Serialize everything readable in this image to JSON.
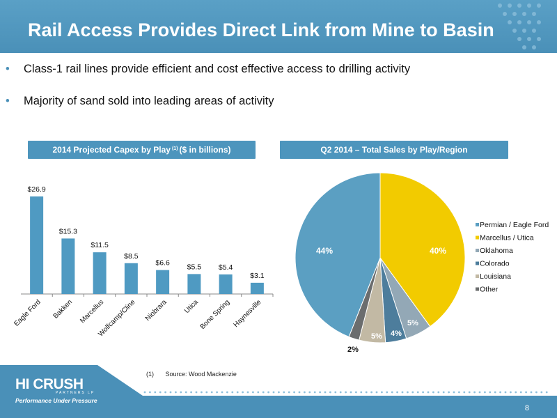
{
  "slide": {
    "title": "Rail Access Provides Direct Link from Mine to Basin",
    "page_number": "8",
    "bullet_symbol": "•",
    "bullets": [
      "Class-1 rail lines provide efficient and cost effective access to drilling activity",
      "Majority of sand sold into leading areas of activity"
    ],
    "footnote": {
      "number": "(1)",
      "text": "Source: Wood Mackenzie"
    },
    "logo": {
      "name": "HI CRUSH",
      "sub": "PARTNERS LP",
      "tagline": "Performance Under Pressure"
    }
  },
  "panels": {
    "bar_title_pre": "2014 Projected Capex by Play",
    "bar_title_sup": "(1)",
    "bar_title_post": "($ in billions)",
    "pie_title": "Q2 2014 – Total Sales by Play/Region"
  },
  "colors": {
    "header": "#4a90b8",
    "panel_header": "#4d95bd",
    "bar": "#4f9ac2",
    "footer": "#4a90b8"
  },
  "chart_data": [
    {
      "type": "bar",
      "title": "2014 Projected Capex by Play (1) ($ in billions)",
      "categories": [
        "Eagle Ford",
        "Bakken",
        "Marcellus",
        "Wolfcamp/Cline",
        "Niobrara",
        "Utica",
        "Bone Spring",
        "Haynesville"
      ],
      "values": [
        26.9,
        15.3,
        11.5,
        8.5,
        6.6,
        5.5,
        5.4,
        3.1
      ],
      "value_labels": [
        "$26.9",
        "$15.3",
        "$11.5",
        "$8.5",
        "$6.6",
        "$5.5",
        "$5.4",
        "$3.1"
      ],
      "ylim": [
        0,
        26.9
      ],
      "grid": false,
      "color": "#4f9ac2"
    },
    {
      "type": "pie",
      "title": "Q2 2014 – Total Sales by Play/Region",
      "legend_position": "right",
      "slices": [
        {
          "label": "Permian / Eagle Ford",
          "value": 44,
          "display": "44%",
          "color": "#5b9fc2"
        },
        {
          "label": "Marcellus / Utica",
          "value": 40,
          "display": "40%",
          "color": "#f2cb00"
        },
        {
          "label": "Oklahoma",
          "value": 5,
          "display": "5%",
          "color": "#93a8b6"
        },
        {
          "label": "Colorado",
          "value": 4,
          "display": "4%",
          "color": "#4d7d9c"
        },
        {
          "label": "Louisiana",
          "value": 5,
          "display": "5%",
          "color": "#c2b9a4"
        },
        {
          "label": "Other",
          "value": 2,
          "display": "2%",
          "color": "#6b6d6e"
        }
      ]
    }
  ]
}
